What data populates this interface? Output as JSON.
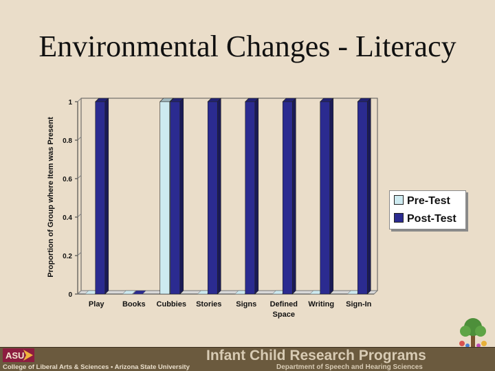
{
  "slide": {
    "title": "Environmental Changes - Literacy"
  },
  "chart_data": {
    "type": "bar",
    "title": "",
    "ylabel": "Proportion of Group where Item was Present",
    "xlabel": "",
    "ylim": [
      0,
      1
    ],
    "yticks": [
      "0",
      "0.2",
      "0.4",
      "0.6",
      "0.8",
      "1"
    ],
    "grid": false,
    "legend_position": "right",
    "categories": [
      "Play",
      "Books",
      "Cubbies",
      "Stories",
      "Signs",
      "Defined Space",
      "Writing",
      "Sign-In"
    ],
    "category_lines": [
      [
        "Play"
      ],
      [
        "Books"
      ],
      [
        "Cubbies"
      ],
      [
        "Stories"
      ],
      [
        "Signs"
      ],
      [
        "Defined",
        "Space"
      ],
      [
        "Writing"
      ],
      [
        "Sign-In"
      ]
    ],
    "series": [
      {
        "name": "Pre-Test",
        "values": [
          0,
          0,
          1,
          0,
          0,
          0,
          0,
          0
        ],
        "color": "#cdeaf0"
      },
      {
        "name": "Post-Test",
        "values": [
          1,
          0,
          1,
          1,
          1,
          1,
          1,
          1
        ],
        "color": "#2b2b90"
      }
    ]
  },
  "footer": {
    "logo_text": "ASU",
    "college": "College of Liberal Arts & Sciences • Arizona State University",
    "program": "Infant Child Research Programs",
    "department": "Department of Speech and Hearing Sciences",
    "background": "#6b5a3e"
  }
}
